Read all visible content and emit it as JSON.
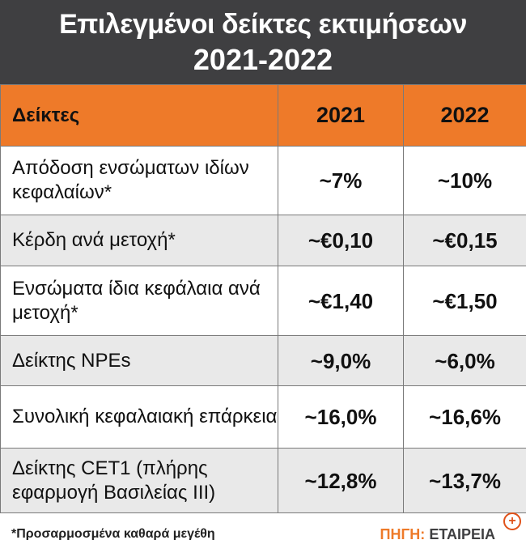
{
  "title": {
    "line1": "Επιλεγμένοι δείκτες εκτιμήσεων",
    "line2": "2021-2022"
  },
  "table": {
    "headers": [
      "Δείκτες",
      "2021",
      "2022"
    ],
    "rows": [
      {
        "label": "Απόδοση ενσώματων ιδίων κεφαλαίων*",
        "v2021": "~7%",
        "v2022": "~10%"
      },
      {
        "label": "Κέρδη ανά μετοχή*",
        "v2021": "~€0,10",
        "v2022": "~€0,15"
      },
      {
        "label": "Ενσώματα ίδια κεφάλαια ανά μετοχή*",
        "v2021": "~€1,40",
        "v2022": "~€1,50"
      },
      {
        "label": "Δείκτης NPEs",
        "v2021": "~9,0%",
        "v2022": "~6,0%"
      },
      {
        "label": "Συνολική κεφαλαιακή επάρκεια",
        "v2021": "~16,0%",
        "v2022": "~16,6%"
      },
      {
        "label": "Δείκτης CET1 (πλήρης εφαρμογή Βασιλείας ΙΙΙ)",
        "v2021": "~12,8%",
        "v2022": "~13,7%"
      }
    ]
  },
  "footer": {
    "footnote": "*Προσαρμοσμένα καθαρά μεγέθη",
    "source_label": "ΠΗΓΗ:",
    "source_value": "ΕΤΑΙΡΕΙΑ"
  },
  "zoom_icon": "zoom-in-icon",
  "colors": {
    "title_bg": "#3f3f41",
    "header_bg": "#ee7a29",
    "row_alt_bg": "#e9e9e9"
  }
}
